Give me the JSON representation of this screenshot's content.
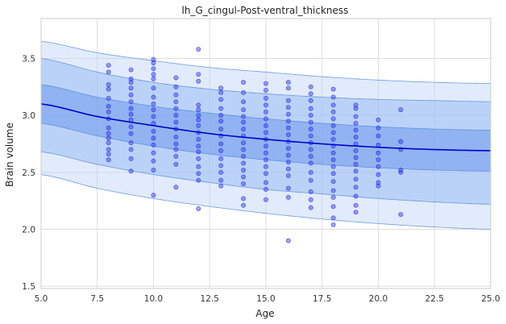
{
  "chart_data": {
    "type": "scatter",
    "title": "lh_G_cingul-Post-ventral_thickness",
    "xlabel": "Age",
    "ylabel": "Brain volume",
    "xlim": [
      5,
      25
    ],
    "ylim": [
      1.48,
      3.85
    ],
    "grid": true,
    "x_ticks": [
      5.0,
      7.5,
      10.0,
      12.5,
      15.0,
      17.5,
      20.0,
      22.5,
      25.0
    ],
    "x_tick_labels": [
      "5.0",
      "7.5",
      "10.0",
      "12.5",
      "15.0",
      "17.5",
      "20.0",
      "22.5",
      "25.0"
    ],
    "y_ticks": [
      1.5,
      2.0,
      2.5,
      3.0,
      3.5
    ],
    "y_tick_labels": [
      "1.5",
      "2.0",
      "2.5",
      "3.0",
      "3.5"
    ],
    "colors": {
      "points": "#3333ff",
      "mean_line": "#0000cc",
      "band_outer": "#bcd2f7",
      "band_middle": "#8fb4f3",
      "band_inner": "#5f8fe8",
      "band_edge": "#4f86e0"
    },
    "curves": {
      "x": [
        5,
        7.5,
        10,
        12.5,
        15,
        17.5,
        20,
        22.5,
        25
      ],
      "mean": [
        3.1,
        2.99,
        2.91,
        2.84,
        2.79,
        2.75,
        2.72,
        2.7,
        2.69
      ],
      "band_inner": {
        "lower": [
          2.93,
          2.82,
          2.73,
          2.66,
          2.61,
          2.57,
          2.54,
          2.52,
          2.51
        ],
        "upper": [
          3.27,
          3.16,
          3.08,
          3.02,
          2.97,
          2.93,
          2.9,
          2.88,
          2.87
        ]
      },
      "band_middle": {
        "lower": [
          2.68,
          2.57,
          2.48,
          2.41,
          2.35,
          2.31,
          2.27,
          2.24,
          2.22
        ],
        "upper": [
          3.5,
          3.38,
          3.29,
          3.23,
          3.19,
          3.16,
          3.14,
          3.13,
          3.12
        ]
      },
      "band_outer": {
        "lower": [
          2.48,
          2.36,
          2.27,
          2.2,
          2.14,
          2.09,
          2.05,
          2.02,
          2.0
        ],
        "upper": [
          3.65,
          3.55,
          3.48,
          3.42,
          3.38,
          3.34,
          3.31,
          3.29,
          3.28
        ]
      }
    },
    "points": [
      [
        8,
        3.44
      ],
      [
        8,
        3.38
      ],
      [
        8,
        3.27
      ],
      [
        8,
        3.23
      ],
      [
        8,
        3.15
      ],
      [
        8,
        3.08
      ],
      [
        8,
        3.03
      ],
      [
        8,
        2.97
      ],
      [
        8,
        2.89
      ],
      [
        8,
        2.84
      ],
      [
        8,
        2.8
      ],
      [
        8,
        2.76
      ],
      [
        8,
        2.7
      ],
      [
        8,
        2.66
      ],
      [
        8,
        2.61
      ],
      [
        9,
        3.4
      ],
      [
        9,
        3.32
      ],
      [
        9,
        3.29
      ],
      [
        9,
        3.24
      ],
      [
        9,
        3.18
      ],
      [
        9,
        3.12
      ],
      [
        9,
        3.06
      ],
      [
        9,
        3.01
      ],
      [
        9,
        2.96
      ],
      [
        9,
        2.9
      ],
      [
        9,
        2.84
      ],
      [
        9,
        2.76
      ],
      [
        9,
        2.7
      ],
      [
        9,
        2.62
      ],
      [
        9,
        2.51
      ],
      [
        10,
        3.49
      ],
      [
        10,
        3.46
      ],
      [
        10,
        3.41
      ],
      [
        10,
        3.36
      ],
      [
        10,
        3.32
      ],
      [
        10,
        3.24
      ],
      [
        10,
        3.16
      ],
      [
        10,
        3.1
      ],
      [
        10,
        3.05
      ],
      [
        10,
        2.99
      ],
      [
        10,
        2.93
      ],
      [
        10,
        2.86
      ],
      [
        10,
        2.8
      ],
      [
        10,
        2.74
      ],
      [
        10,
        2.67
      ],
      [
        10,
        2.6
      ],
      [
        10,
        2.52
      ],
      [
        10,
        2.3
      ],
      [
        11,
        3.33
      ],
      [
        11,
        3.25
      ],
      [
        11,
        3.18
      ],
      [
        11,
        3.12
      ],
      [
        11,
        3.06
      ],
      [
        11,
        3.0
      ],
      [
        11,
        2.94
      ],
      [
        11,
        2.88
      ],
      [
        11,
        2.81
      ],
      [
        11,
        2.75
      ],
      [
        11,
        2.7
      ],
      [
        11,
        2.64
      ],
      [
        11,
        2.57
      ],
      [
        11,
        2.37
      ],
      [
        12,
        3.58
      ],
      [
        12,
        3.36
      ],
      [
        12,
        3.3
      ],
      [
        12,
        3.09
      ],
      [
        12,
        3.05
      ],
      [
        12,
        3.0
      ],
      [
        12,
        2.96
      ],
      [
        12,
        2.91
      ],
      [
        12,
        2.85
      ],
      [
        12,
        2.79
      ],
      [
        12,
        2.73
      ],
      [
        12,
        2.68
      ],
      [
        12,
        2.62
      ],
      [
        12,
        2.55
      ],
      [
        12,
        2.49
      ],
      [
        12,
        2.43
      ],
      [
        12,
        2.18
      ],
      [
        13,
        3.24
      ],
      [
        13,
        3.2
      ],
      [
        13,
        3.14
      ],
      [
        13,
        3.06
      ],
      [
        13,
        3.0
      ],
      [
        13,
        2.95
      ],
      [
        13,
        2.88
      ],
      [
        13,
        2.82
      ],
      [
        13,
        2.75
      ],
      [
        13,
        2.69
      ],
      [
        13,
        2.62
      ],
      [
        13,
        2.56
      ],
      [
        13,
        2.5
      ],
      [
        13,
        2.43
      ],
      [
        13,
        2.38
      ],
      [
        14,
        3.29
      ],
      [
        14,
        3.2
      ],
      [
        14,
        3.12
      ],
      [
        14,
        3.05
      ],
      [
        14,
        2.99
      ],
      [
        14,
        2.94
      ],
      [
        14,
        2.88
      ],
      [
        14,
        2.82
      ],
      [
        14,
        2.76
      ],
      [
        14,
        2.7
      ],
      [
        14,
        2.64
      ],
      [
        14,
        2.58
      ],
      [
        14,
        2.52
      ],
      [
        14,
        2.46
      ],
      [
        14,
        2.4
      ],
      [
        14,
        2.27
      ],
      [
        14,
        2.21
      ],
      [
        15,
        3.28
      ],
      [
        15,
        3.22
      ],
      [
        15,
        3.15
      ],
      [
        15,
        3.09
      ],
      [
        15,
        3.03
      ],
      [
        15,
        2.97
      ],
      [
        15,
        2.91
      ],
      [
        15,
        2.85
      ],
      [
        15,
        2.79
      ],
      [
        15,
        2.73
      ],
      [
        15,
        2.67
      ],
      [
        15,
        2.61
      ],
      [
        15,
        2.55
      ],
      [
        15,
        2.49
      ],
      [
        15,
        2.41
      ],
      [
        15,
        2.35
      ],
      [
        15,
        2.26
      ],
      [
        16,
        3.29
      ],
      [
        16,
        3.24
      ],
      [
        16,
        3.13
      ],
      [
        16,
        3.07
      ],
      [
        16,
        3.01
      ],
      [
        16,
        2.95
      ],
      [
        16,
        2.89
      ],
      [
        16,
        2.83
      ],
      [
        16,
        2.77
      ],
      [
        16,
        2.71
      ],
      [
        16,
        2.65
      ],
      [
        16,
        2.59
      ],
      [
        16,
        2.53
      ],
      [
        16,
        2.47
      ],
      [
        16,
        2.36
      ],
      [
        16,
        2.28
      ],
      [
        16,
        1.9
      ],
      [
        17,
        3.25
      ],
      [
        17,
        3.19
      ],
      [
        17,
        3.13
      ],
      [
        17,
        3.06
      ],
      [
        17,
        3.0
      ],
      [
        17,
        2.94
      ],
      [
        17,
        2.88
      ],
      [
        17,
        2.82
      ],
      [
        17,
        2.76
      ],
      [
        17,
        2.7
      ],
      [
        17,
        2.64
      ],
      [
        17,
        2.58
      ],
      [
        17,
        2.5
      ],
      [
        17,
        2.43
      ],
      [
        17,
        2.33
      ],
      [
        17,
        2.26
      ],
      [
        17,
        2.19
      ],
      [
        18,
        3.23
      ],
      [
        18,
        3.16
      ],
      [
        18,
        3.09
      ],
      [
        18,
        3.03
      ],
      [
        18,
        2.97
      ],
      [
        18,
        2.91
      ],
      [
        18,
        2.85
      ],
      [
        18,
        2.79
      ],
      [
        18,
        2.73
      ],
      [
        18,
        2.67
      ],
      [
        18,
        2.61
      ],
      [
        18,
        2.55
      ],
      [
        18,
        2.49
      ],
      [
        18,
        2.42
      ],
      [
        18,
        2.34
      ],
      [
        18,
        2.28
      ],
      [
        18,
        2.2
      ],
      [
        18,
        2.1
      ],
      [
        18,
        2.04
      ],
      [
        19,
        3.09
      ],
      [
        19,
        3.06
      ],
      [
        19,
        2.99
      ],
      [
        19,
        2.93
      ],
      [
        19,
        2.87
      ],
      [
        19,
        2.81
      ],
      [
        19,
        2.75
      ],
      [
        19,
        2.69
      ],
      [
        19,
        2.63
      ],
      [
        19,
        2.57
      ],
      [
        19,
        2.51
      ],
      [
        19,
        2.44
      ],
      [
        19,
        2.37
      ],
      [
        19,
        2.29
      ],
      [
        19,
        2.21
      ],
      [
        19,
        2.15
      ],
      [
        20,
        2.96
      ],
      [
        20,
        2.89
      ],
      [
        20,
        2.82
      ],
      [
        20,
        2.74
      ],
      [
        20,
        2.67
      ],
      [
        20,
        2.61
      ],
      [
        20,
        2.55
      ],
      [
        20,
        2.48
      ],
      [
        20,
        2.41
      ],
      [
        20,
        2.38
      ],
      [
        21,
        3.05
      ],
      [
        21,
        2.77
      ],
      [
        21,
        2.7
      ],
      [
        21,
        2.52
      ],
      [
        21,
        2.5
      ],
      [
        21,
        2.13
      ]
    ]
  }
}
